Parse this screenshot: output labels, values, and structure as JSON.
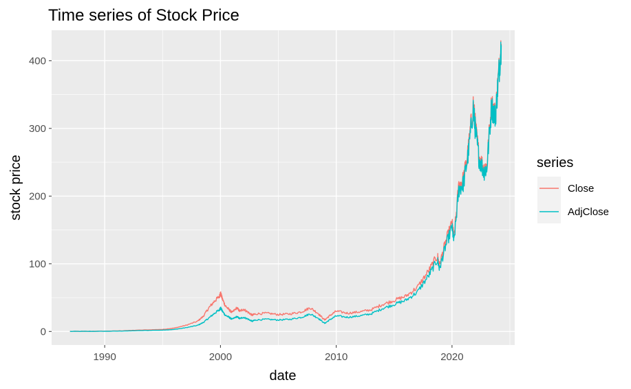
{
  "chart_data": {
    "type": "line",
    "title": "Time series of Stock Price",
    "xlabel": "date",
    "ylabel": "stock price",
    "x_type": "date",
    "xlim": [
      "1985-06-01",
      "2025-06-01"
    ],
    "ylim": [
      -20,
      445
    ],
    "x_ticks": [
      "1990",
      "2000",
      "2010",
      "2020"
    ],
    "x_tick_values": [
      "1990-01-01",
      "2000-01-01",
      "2010-01-01",
      "2020-01-01"
    ],
    "y_ticks": [
      0,
      100,
      200,
      300,
      400
    ],
    "grid": true,
    "legend": {
      "title": "series",
      "position": "right"
    },
    "series": [
      {
        "name": "Close",
        "color": "#F8766D",
        "points": [
          [
            "1987-01-01",
            0.2
          ],
          [
            "1989-01-01",
            0.3
          ],
          [
            "1991-01-01",
            0.8
          ],
          [
            "1993-01-01",
            2.0
          ],
          [
            "1995-01-01",
            3.0
          ],
          [
            "1996-01-01",
            5.0
          ],
          [
            "1997-01-01",
            9.0
          ],
          [
            "1998-01-01",
            15.0
          ],
          [
            "1998-07-01",
            22.0
          ],
          [
            "1999-01-01",
            35.0
          ],
          [
            "1999-07-01",
            45.0
          ],
          [
            "1999-12-01",
            52.0
          ],
          [
            "2000-01-01",
            57.0
          ],
          [
            "2000-03-01",
            48.0
          ],
          [
            "2000-06-01",
            38.0
          ],
          [
            "2000-10-01",
            32.0
          ],
          [
            "2001-01-01",
            28.0
          ],
          [
            "2001-06-01",
            35.0
          ],
          [
            "2001-09-01",
            30.0
          ],
          [
            "2002-01-01",
            33.0
          ],
          [
            "2002-06-01",
            28.0
          ],
          [
            "2002-10-01",
            24.0
          ],
          [
            "2003-01-01",
            26.0
          ],
          [
            "2004-01-01",
            27.0
          ],
          [
            "2005-01-01",
            25.0
          ],
          [
            "2006-01-01",
            26.0
          ],
          [
            "2007-01-01",
            29.0
          ],
          [
            "2007-10-01",
            35.0
          ],
          [
            "2008-06-01",
            27.0
          ],
          [
            "2009-01-01",
            17.0
          ],
          [
            "2009-06-01",
            23.0
          ],
          [
            "2010-01-01",
            30.0
          ],
          [
            "2011-01-01",
            27.0
          ],
          [
            "2012-01-01",
            29.0
          ],
          [
            "2013-01-01",
            32.0
          ],
          [
            "2014-01-01",
            40.0
          ],
          [
            "2015-01-01",
            46.0
          ],
          [
            "2016-01-01",
            52.0
          ],
          [
            "2017-01-01",
            65.0
          ],
          [
            "2018-01-01",
            90.0
          ],
          [
            "2018-10-01",
            112.0
          ],
          [
            "2018-12-01",
            98.0
          ],
          [
            "2019-06-01",
            130.0
          ],
          [
            "2020-01-01",
            160.0
          ],
          [
            "2020-03-01",
            138.0
          ],
          [
            "2020-08-01",
            215.0
          ],
          [
            "2021-01-01",
            225.0
          ],
          [
            "2021-06-01",
            270.0
          ],
          [
            "2021-11-01",
            335.0
          ],
          [
            "2022-01-01",
            305.0
          ],
          [
            "2022-05-01",
            260.0
          ],
          [
            "2022-10-01",
            240.0
          ],
          [
            "2023-01-01",
            245.0
          ],
          [
            "2023-06-01",
            335.0
          ],
          [
            "2023-10-01",
            320.0
          ],
          [
            "2024-01-01",
            375.0
          ],
          [
            "2024-04-01",
            425.0
          ]
        ]
      },
      {
        "name": "AdjClose",
        "color": "#00BFC4",
        "points": [
          [
            "1987-01-01",
            0.1
          ],
          [
            "1989-01-01",
            0.2
          ],
          [
            "1991-01-01",
            0.5
          ],
          [
            "1993-01-01",
            1.2
          ],
          [
            "1995-01-01",
            2.0
          ],
          [
            "1996-01-01",
            3.0
          ],
          [
            "1997-01-01",
            5.5
          ],
          [
            "1998-01-01",
            9.0
          ],
          [
            "1998-07-01",
            13.0
          ],
          [
            "1999-01-01",
            20.0
          ],
          [
            "1999-07-01",
            27.0
          ],
          [
            "1999-12-01",
            32.0
          ],
          [
            "2000-01-01",
            35.0
          ],
          [
            "2000-03-01",
            30.0
          ],
          [
            "2000-06-01",
            24.0
          ],
          [
            "2000-10-01",
            21.0
          ],
          [
            "2001-01-01",
            18.0
          ],
          [
            "2001-06-01",
            22.0
          ],
          [
            "2001-09-01",
            19.0
          ],
          [
            "2002-01-01",
            21.0
          ],
          [
            "2002-06-01",
            18.0
          ],
          [
            "2002-10-01",
            15.0
          ],
          [
            "2003-01-01",
            17.0
          ],
          [
            "2004-01-01",
            18.0
          ],
          [
            "2005-01-01",
            17.0
          ],
          [
            "2006-01-01",
            18.0
          ],
          [
            "2007-01-01",
            21.0
          ],
          [
            "2007-10-01",
            26.0
          ],
          [
            "2008-06-01",
            20.0
          ],
          [
            "2009-01-01",
            12.0
          ],
          [
            "2009-06-01",
            17.0
          ],
          [
            "2010-01-01",
            23.0
          ],
          [
            "2011-01-01",
            21.0
          ],
          [
            "2012-01-01",
            23.0
          ],
          [
            "2013-01-01",
            26.0
          ],
          [
            "2014-01-01",
            34.0
          ],
          [
            "2015-01-01",
            40.0
          ],
          [
            "2016-01-01",
            46.0
          ],
          [
            "2017-01-01",
            58.0
          ],
          [
            "2018-01-01",
            83.0
          ],
          [
            "2018-10-01",
            106.0
          ],
          [
            "2018-12-01",
            92.0
          ],
          [
            "2019-06-01",
            124.0
          ],
          [
            "2020-01-01",
            154.0
          ],
          [
            "2020-03-01",
            132.0
          ],
          [
            "2020-08-01",
            209.0
          ],
          [
            "2021-01-01",
            219.0
          ],
          [
            "2021-06-01",
            264.0
          ],
          [
            "2021-11-01",
            330.0
          ],
          [
            "2022-01-01",
            300.0
          ],
          [
            "2022-05-01",
            256.0
          ],
          [
            "2022-10-01",
            236.0
          ],
          [
            "2023-01-01",
            241.0
          ],
          [
            "2023-06-01",
            332.0
          ],
          [
            "2023-10-01",
            317.0
          ],
          [
            "2024-01-01",
            373.0
          ],
          [
            "2024-04-01",
            423.0
          ]
        ]
      }
    ]
  }
}
